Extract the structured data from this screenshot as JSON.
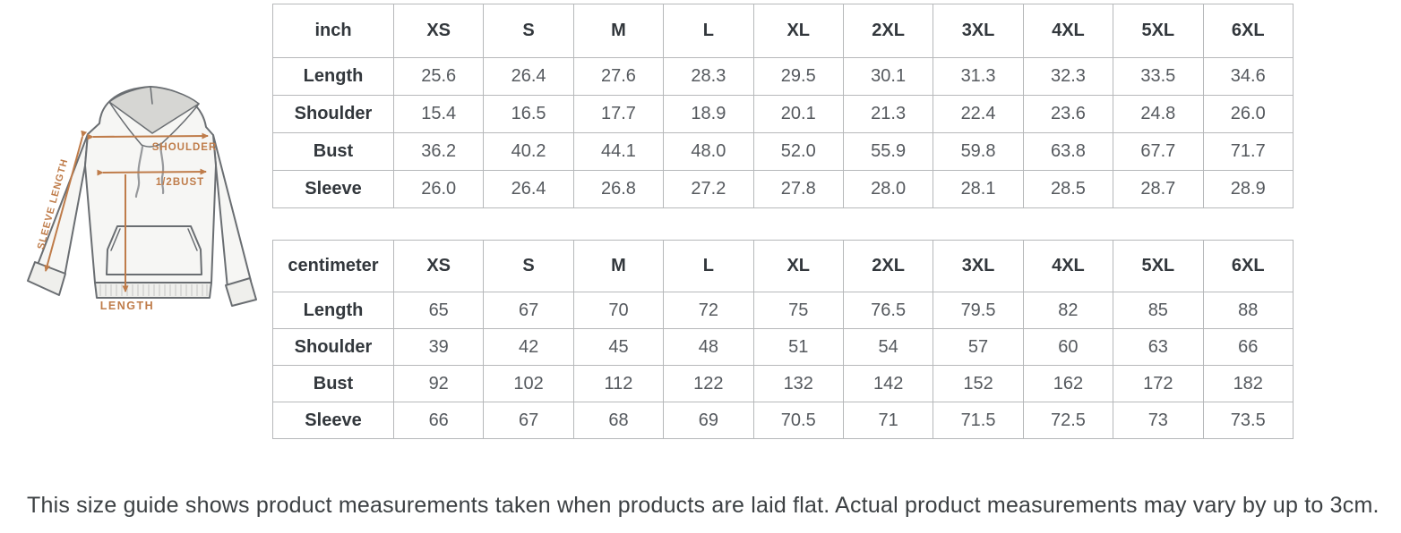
{
  "diagram": {
    "accent_color": "#bf7c4a",
    "labels": {
      "shoulder": "SHOULDER",
      "half_bust": "1/2BUST",
      "sleeve_length": "SLEEVE LENGTH",
      "length": "LENGTH"
    }
  },
  "tables": [
    {
      "unit_label": "inch",
      "columns": [
        "XS",
        "S",
        "M",
        "L",
        "XL",
        "2XL",
        "3XL",
        "4XL",
        "5XL",
        "6XL"
      ],
      "rows": [
        {
          "label": "Length",
          "values": [
            "25.6",
            "26.4",
            "27.6",
            "28.3",
            "29.5",
            "30.1",
            "31.3",
            "32.3",
            "33.5",
            "34.6"
          ]
        },
        {
          "label": "Shoulder",
          "values": [
            "15.4",
            "16.5",
            "17.7",
            "18.9",
            "20.1",
            "21.3",
            "22.4",
            "23.6",
            "24.8",
            "26.0"
          ]
        },
        {
          "label": "Bust",
          "values": [
            "36.2",
            "40.2",
            "44.1",
            "48.0",
            "52.0",
            "55.9",
            "59.8",
            "63.8",
            "67.7",
            "71.7"
          ]
        },
        {
          "label": "Sleeve",
          "values": [
            "26.0",
            "26.4",
            "26.8",
            "27.2",
            "27.8",
            "28.0",
            "28.1",
            "28.5",
            "28.7",
            "28.9"
          ]
        }
      ]
    },
    {
      "unit_label": "centimeter",
      "columns": [
        "XS",
        "S",
        "M",
        "L",
        "XL",
        "2XL",
        "3XL",
        "4XL",
        "5XL",
        "6XL"
      ],
      "rows": [
        {
          "label": "Length",
          "values": [
            "65",
            "67",
            "70",
            "72",
            "75",
            "76.5",
            "79.5",
            "82",
            "85",
            "88"
          ]
        },
        {
          "label": "Shoulder",
          "values": [
            "39",
            "42",
            "45",
            "48",
            "51",
            "54",
            "57",
            "60",
            "63",
            "66"
          ]
        },
        {
          "label": "Bust",
          "values": [
            "92",
            "102",
            "112",
            "122",
            "132",
            "142",
            "152",
            "162",
            "172",
            "182"
          ]
        },
        {
          "label": "Sleeve",
          "values": [
            "66",
            "67",
            "68",
            "69",
            "70.5",
            "71",
            "71.5",
            "72.5",
            "73",
            "73.5"
          ]
        }
      ]
    }
  ],
  "note": "This size guide shows product measurements taken when products are laid flat. Actual product measurements may vary by up to 3cm."
}
